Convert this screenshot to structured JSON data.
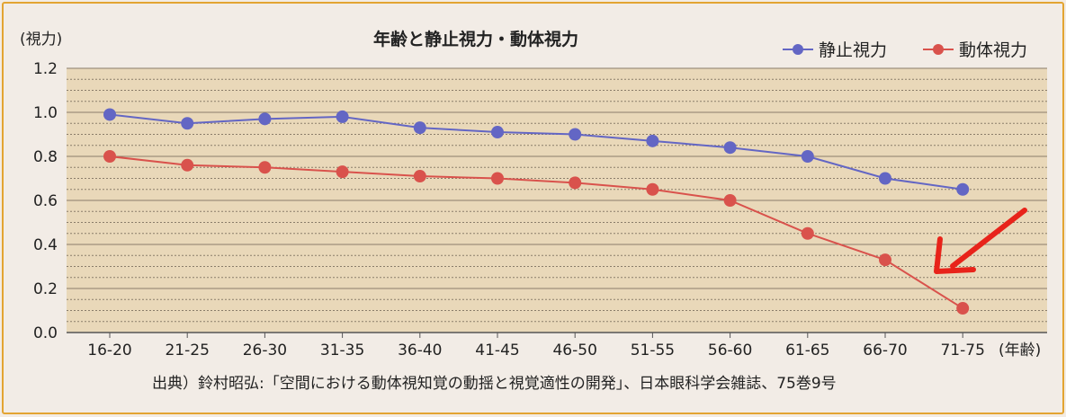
{
  "chart_data": {
    "type": "line",
    "title": "年齢と静止視力・動体視力",
    "ylabel": "(視力)",
    "xlabel": "(年齢)",
    "ylim": [
      0,
      1.2
    ],
    "yticks": [
      "0.0",
      "0.2",
      "0.4",
      "0.6",
      "0.8",
      "1.0",
      "1.2"
    ],
    "categories": [
      "16-20",
      "21-25",
      "26-30",
      "31-35",
      "36-40",
      "41-45",
      "46-50",
      "51-55",
      "56-60",
      "61-65",
      "66-70",
      "71-75"
    ],
    "series": [
      {
        "name": "静止視力",
        "color": "#6366c4",
        "values": [
          0.99,
          0.95,
          0.97,
          0.98,
          0.93,
          0.91,
          0.9,
          0.87,
          0.84,
          0.8,
          0.7,
          0.65
        ]
      },
      {
        "name": "動体視力",
        "color": "#d9524c",
        "values": [
          0.8,
          0.76,
          0.75,
          0.73,
          0.71,
          0.7,
          0.68,
          0.65,
          0.6,
          0.45,
          0.33,
          0.11
        ]
      }
    ],
    "legend_position": "top-right",
    "grid": true,
    "annotation": {
      "type": "arrow",
      "color": "#e8231a",
      "points_to": "71-75"
    }
  },
  "source_note": "出典）鈴村昭弘:「空間における動体視知覚の動揺と視覚適性の開発」、日本眼科学会雑誌、75巻9号"
}
